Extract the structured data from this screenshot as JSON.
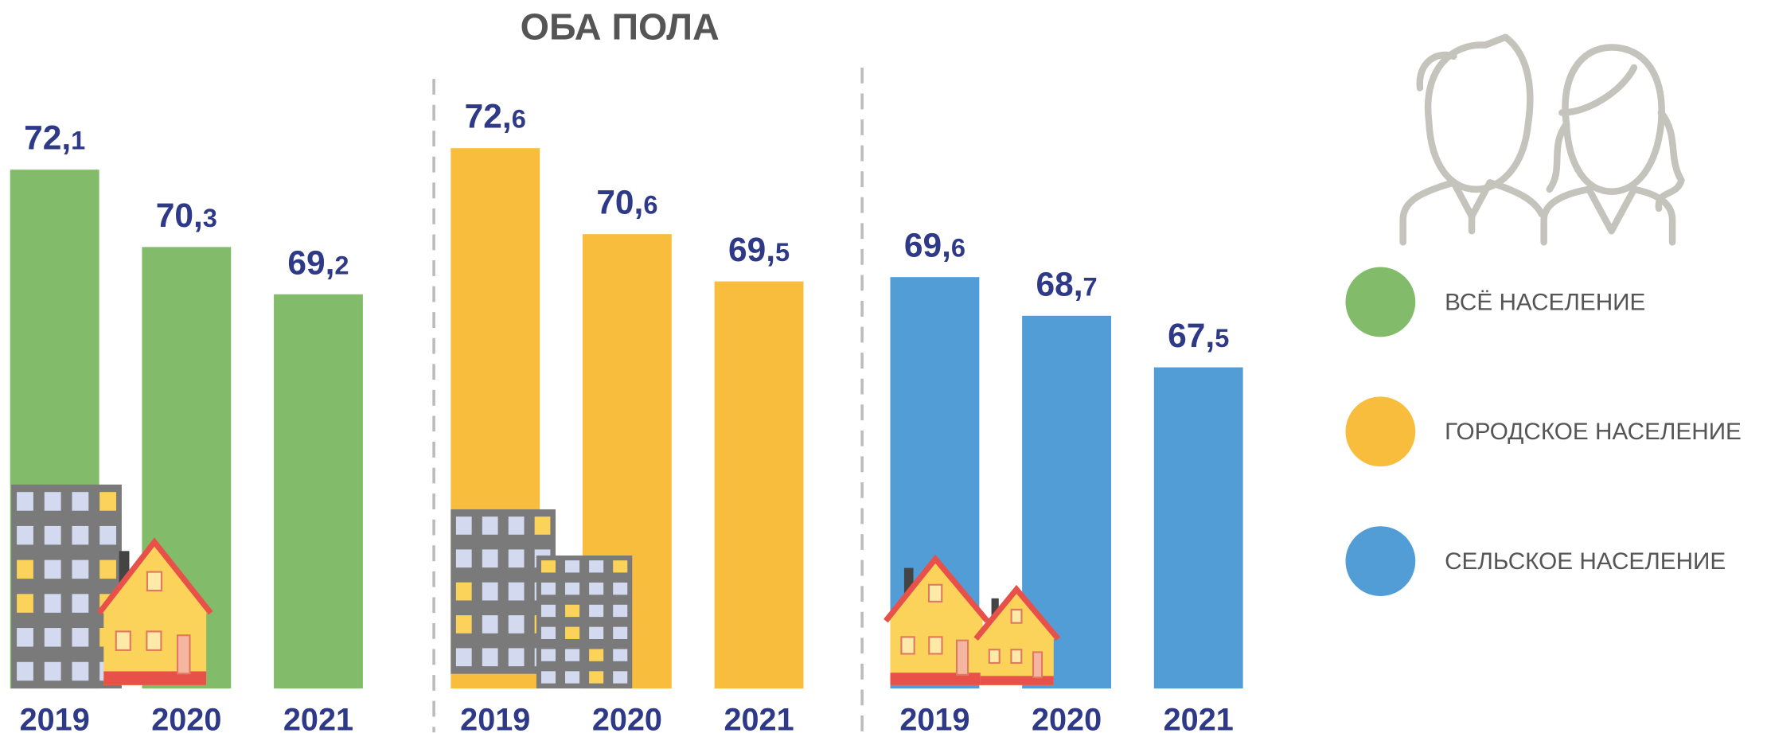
{
  "chart_data": {
    "type": "bar",
    "title": "ОБА ПОЛА",
    "categories": [
      "2019",
      "2020",
      "2021"
    ],
    "series": [
      {
        "name": "ВСЁ НАСЕЛЕНИЕ",
        "color": "#82bc6a",
        "values": [
          72.1,
          70.3,
          69.2
        ],
        "value_labels": [
          "72,1",
          "70,3",
          "69,2"
        ]
      },
      {
        "name": "ГОРОДСКОЕ НАСЕЛЕНИЕ",
        "color": "#f9bd3e",
        "values": [
          72.6,
          70.6,
          69.5
        ],
        "value_labels": [
          "72,6",
          "70,6",
          "69,5"
        ]
      },
      {
        "name": "СЕЛЬСКОЕ НАСЕЛЕНИЕ",
        "color": "#529dd6",
        "values": [
          69.6,
          68.7,
          67.5
        ],
        "value_labels": [
          "69,6",
          "68,7",
          "67,5"
        ]
      }
    ]
  }
}
